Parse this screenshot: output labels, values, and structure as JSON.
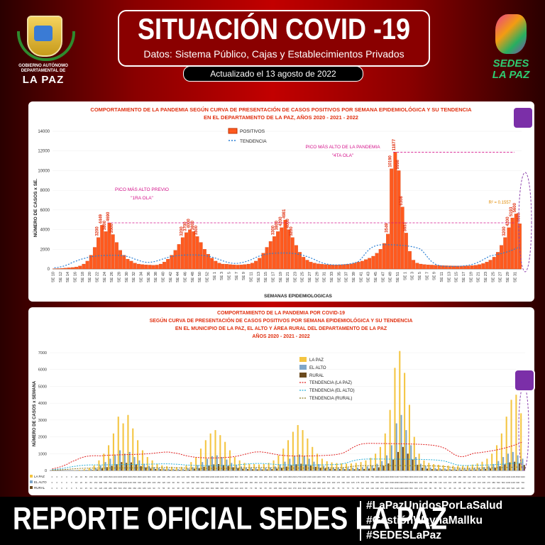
{
  "header": {
    "logo_left_line1": "GOBIERNO AUTÓNOMO DEPARTAMENTAL DE",
    "logo_left_line2": "LA PAZ",
    "title": "SITUACIÓN COVID -19",
    "subtitle": "Datos: Sistema Público, Cajas y Establecimientos Privados",
    "updated": "Actualizado el  13  agosto de 2022",
    "logo_right": "SEDES LA PAZ"
  },
  "footer": {
    "main": "REPORTE OFICIAL SEDES LA PAZ",
    "tags": [
      "#LaPazUnidosPorLaSalud",
      "#GestiónWaynaMallku",
      "#SEDESLaPaz"
    ]
  },
  "colors": {
    "accent_red": "#c20000",
    "bar_orange": "#ff5a1f",
    "lapaz_yellow": "#f4c542",
    "elalto_blue": "#7ea6c9",
    "rural_brown": "#6b4a1e"
  },
  "chart_data": [
    {
      "type": "bar",
      "title": "COMPORTAMIENTO DE LA PANDEMIA SEGÚN CURVA DE PRESENTACIÓN DE CASOS POSITIVOS POR SEMANA EPIDEMIOLÓGICA Y SU TENDENCIA",
      "subtitle": "EN EL DEPARTAMENTO DE LA PAZ, AÑOS 2020 - 2021 - 2022",
      "xlabel": "SEMANAS EPIDEMIOLOGICAS",
      "ylabel": "NÚMERO DE CASOS x SE.",
      "ylim": [
        0,
        14000
      ],
      "yticks": [
        "0",
        "2000",
        "4000",
        "6000",
        "8000",
        "10000",
        "12000",
        "14000"
      ],
      "xtick_labels": [
        "SE 10",
        "SE 12",
        "SE 14",
        "SE 16",
        "SE 18",
        "SE 20",
        "SE 22",
        "SE 24",
        "SE 26",
        "SE 28",
        "SE 30",
        "SE 32",
        "SE 34",
        "SE 36",
        "SE 38",
        "SE 40",
        "SE 42",
        "SE 44",
        "SE 46",
        "SE 48",
        "SE 50",
        "SE 52",
        "SE 1",
        "SE 3",
        "SE 5",
        "SE 7",
        "SE 9",
        "SE 11",
        "SE 13",
        "SE 15",
        "SE 17",
        "SE 19",
        "SE 21",
        "SE 23",
        "SE 25",
        "SE 27",
        "SE 29",
        "SE 31",
        "SE 33",
        "SE 35",
        "SE 37",
        "SE 39",
        "SE 41",
        "SE 43",
        "SE 45",
        "SE 47",
        "SE 49",
        "SE 51",
        "SE 1",
        "SE 3",
        "SE 5",
        "SE 7",
        "SE 9",
        "SE 11",
        "SE 13",
        "SE 15",
        "SE 17",
        "SE 19",
        "SE 21",
        "SE 23",
        "SE 25",
        "SE 27",
        "SE 29",
        "SE 31"
      ],
      "legend": [
        "POSITIVOS",
        "TENDENCIA"
      ],
      "legend_position": "top-center",
      "series": [
        {
          "name": "POSITIVOS",
          "values": [
            20,
            40,
            60,
            90,
            120,
            150,
            200,
            300,
            500,
            800,
            1400,
            2200,
            3200,
            4449,
            3800,
            4690,
            3500,
            2700,
            1900,
            1400,
            1000,
            800,
            600,
            500,
            450,
            420,
            400,
            380,
            400,
            500,
            700,
            1000,
            1400,
            1900,
            2500,
            3200,
            3700,
            4000,
            3800,
            3300,
            2700,
            2000,
            1500,
            1100,
            800,
            600,
            500,
            480,
            450,
            420,
            400,
            420,
            450,
            500,
            600,
            800,
            1100,
            1600,
            2200,
            2800,
            3300,
            3800,
            4200,
            4981,
            4000,
            3200,
            2400,
            1700,
            1200,
            900,
            700,
            600,
            520,
            480,
            450,
            430,
            420,
            420,
            430,
            450,
            480,
            520,
            600,
            700,
            800,
            950,
            1100,
            1300,
            1600,
            2000,
            2600,
            3549,
            10190,
            11877,
            9998,
            6308,
            3653,
            1800,
            900,
            600,
            500,
            450,
            420,
            400,
            380,
            360,
            340,
            330,
            320,
            310,
            300,
            300,
            310,
            320,
            340,
            380,
            450,
            550,
            700,
            900,
            1200,
            1700,
            2400,
            3200,
            4200,
            5193,
            5600,
            4600
          ]
        },
        {
          "name": "TENDENCIA",
          "style": "dotted"
        }
      ],
      "annotations": [
        {
          "text": "PICO MÁS ALTO PREVIO",
          "text2": "\"1RA OLA\""
        },
        {
          "text": "PICO MÁS ALTO DE LA PANDEMIA",
          "text2": "\"4TA OLA\""
        },
        {
          "text": "R² = 0.1557"
        }
      ]
    },
    {
      "type": "bar",
      "title": "COMPORTAMIENTO DE LA PANDEMIA POR COVID-19",
      "subtitle_lines": [
        "SEGÚN CURVA DE PRESENTACIÓN DE CASOS POSITIVOS POR SEMANA EPIDEMIOLÓGICA Y SU TENDENCIA",
        "EN EL  MUNICIPIO DE LA PAZ, EL ALTO Y ÁREA RURAL DEL DEPARTAMENTO DE LA PAZ",
        "AÑOS 2020 - 2021 - 2022"
      ],
      "ylabel": "NÚMERO DE CASOS x SEMANA",
      "ylim": [
        0,
        7000
      ],
      "yticks": [
        "0",
        "1000",
        "2000",
        "3000",
        "4000",
        "5000",
        "6000",
        "7000"
      ],
      "legend": [
        "LA PAZ",
        "EL ALTO",
        "RURAL",
        "TENDENCIA (LA PAZ)",
        "TENDENCIA (EL ALTO)",
        "TENDENCIA (RURAL)"
      ],
      "legend_position": "upper-center",
      "table_row_labels": [
        "LA PAZ",
        "EL ALTO",
        "RURAL"
      ],
      "series": [
        {
          "name": "LA PAZ",
          "values": [
            0,
            0,
            0,
            0,
            0,
            20,
            40,
            80,
            150,
            300,
            600,
            1000,
            1500,
            2200,
            3200,
            2800,
            3300,
            2500,
            1800,
            1200,
            800,
            600,
            400,
            300,
            250,
            220,
            200,
            220,
            300,
            500,
            800,
            1300,
            1800,
            2200,
            2400,
            2100,
            1700,
            1200,
            800,
            600,
            450,
            400,
            380,
            360,
            380,
            450,
            600,
            900,
            1300,
            1800,
            2300,
            2700,
            2400,
            1900,
            1400,
            1000,
            700,
            550,
            480,
            440,
            420,
            410,
            420,
            450,
            500,
            600,
            750,
            1000,
            1400,
            2200,
            3600,
            6100,
            7100,
            5800,
            3900,
            2000,
            1000,
            600,
            450,
            380,
            340,
            310,
            290,
            280,
            280,
            290,
            310,
            350,
            420,
            520,
            700,
            1000,
            1500,
            2200,
            3200,
            4200,
            4500,
            3400
          ]
        },
        {
          "name": "EL ALTO",
          "values": [
            0,
            0,
            0,
            0,
            0,
            10,
            20,
            40,
            80,
            150,
            300,
            500,
            700,
            900,
            1200,
            1000,
            1100,
            800,
            600,
            400,
            280,
            200,
            150,
            120,
            100,
            90,
            80,
            90,
            120,
            200,
            320,
            500,
            700,
            850,
            900,
            800,
            650,
            450,
            320,
            240,
            180,
            160,
            150,
            140,
            150,
            180,
            240,
            360,
            520,
            700,
            850,
            950,
            850,
            700,
            520,
            380,
            280,
            220,
            190,
            170,
            160,
            160,
            165,
            175,
            200,
            240,
            300,
            400,
            560,
            900,
            1500,
            2800,
            3300,
            2400,
            1500,
            800,
            400,
            250,
            180,
            150,
            130,
            120,
            110,
            105,
            105,
            110,
            120,
            135,
            160,
            200,
            270,
            380,
            560,
            800,
            1000,
            1100,
            900,
            700
          ]
        },
        {
          "name": "RURAL",
          "values": [
            0,
            0,
            0,
            0,
            0,
            5,
            10,
            15,
            30,
            60,
            120,
            200,
            280,
            380,
            500,
            450,
            480,
            360,
            260,
            180,
            120,
            90,
            70,
            55,
            45,
            40,
            38,
            40,
            55,
            90,
            140,
            220,
            300,
            360,
            380,
            330,
            270,
            190,
            140,
            100,
            80,
            70,
            65,
            60,
            65,
            80,
            105,
            160,
            230,
            310,
            370,
            400,
            360,
            290,
            220,
            160,
            120,
            95,
            85,
            78,
            74,
            72,
            74,
            80,
            90,
            110,
            140,
            190,
            270,
            420,
            650,
            1100,
            1400,
            1000,
            650,
            340,
            170,
            110,
            80,
            65,
            58,
            52,
            48,
            46,
            46,
            48,
            52,
            58,
            70,
            90,
            120,
            170,
            250,
            360,
            480,
            520,
            420,
            330
          ]
        },
        {
          "name": "TENDENCIA (LA PAZ)",
          "style": "dotted"
        },
        {
          "name": "TENDENCIA (EL ALTO)",
          "style": "dotted"
        },
        {
          "name": "TENDENCIA (RURAL)",
          "style": "dotted"
        }
      ]
    }
  ]
}
